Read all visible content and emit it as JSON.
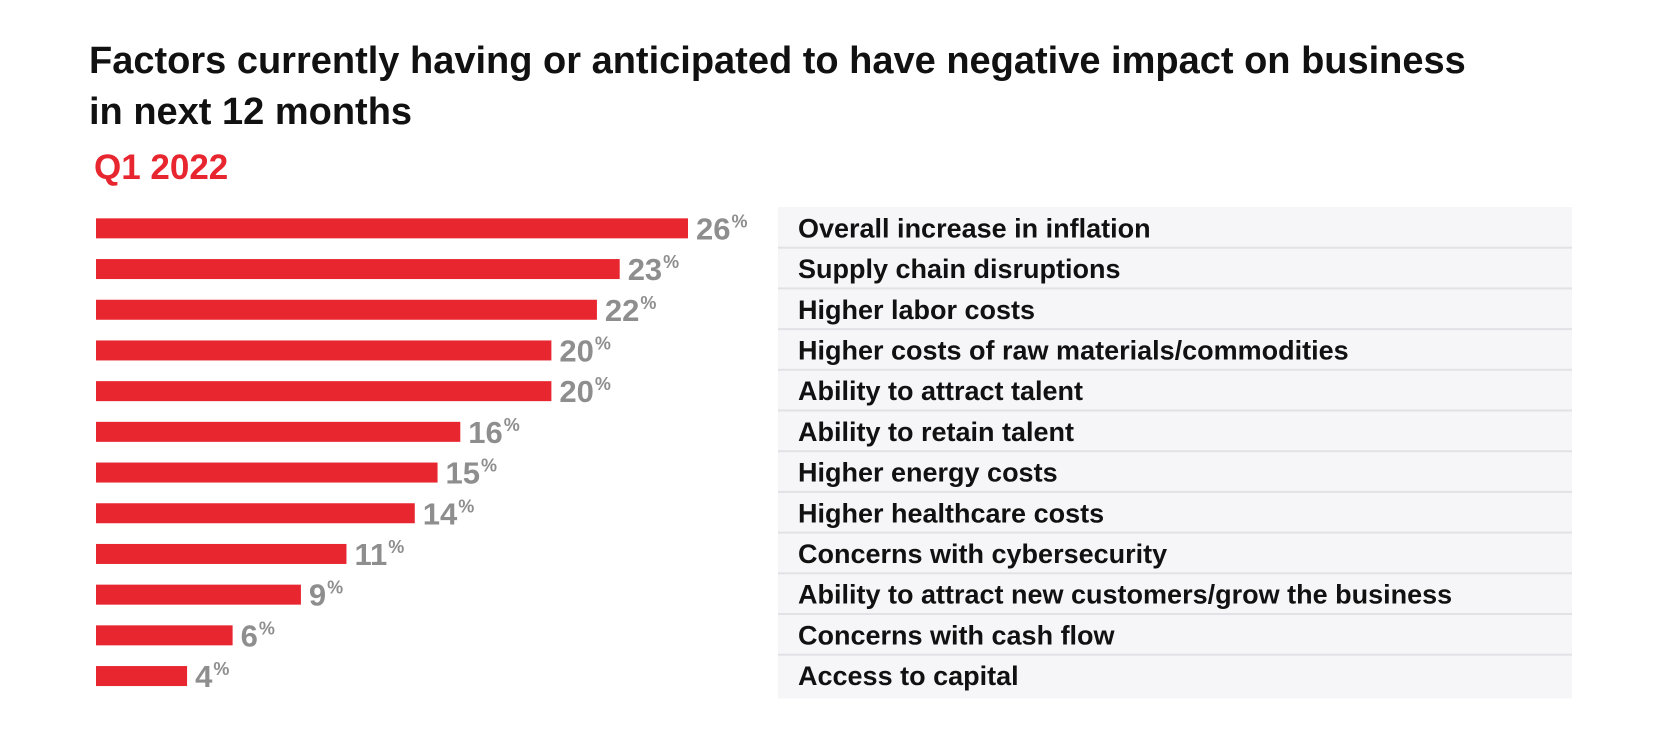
{
  "title": "Factors currently having or anticipated to have negative impact on business in next 12 months",
  "subtitle": "Q1 2022",
  "chart_data": {
    "type": "bar",
    "orientation": "horizontal",
    "title": "Factors currently having or anticipated to have negative impact on business in next 12 months",
    "subtitle": "Q1 2022",
    "unit": "%",
    "categories": [
      "Overall increase in inflation",
      "Supply chain disruptions",
      "Higher labor costs",
      "Higher costs of raw materials/commodities",
      "Ability to attract talent",
      "Ability to retain talent",
      "Higher energy costs",
      "Higher healthcare costs",
      "Concerns with cybersecurity",
      "Ability to attract new customers/grow the business",
      "Concerns with cash flow",
      "Access to capital"
    ],
    "values": [
      26,
      23,
      22,
      20,
      20,
      16,
      15,
      14,
      11,
      9,
      6,
      4
    ],
    "xlim": [
      0,
      26
    ],
    "grid": false,
    "legend": "none",
    "colors": {
      "bar": "#e8262f",
      "value_label": "#8e8e8e",
      "category_label": "#111111",
      "label_panel": "#f6f6f8",
      "row_divider": "#e2e2e6"
    }
  }
}
